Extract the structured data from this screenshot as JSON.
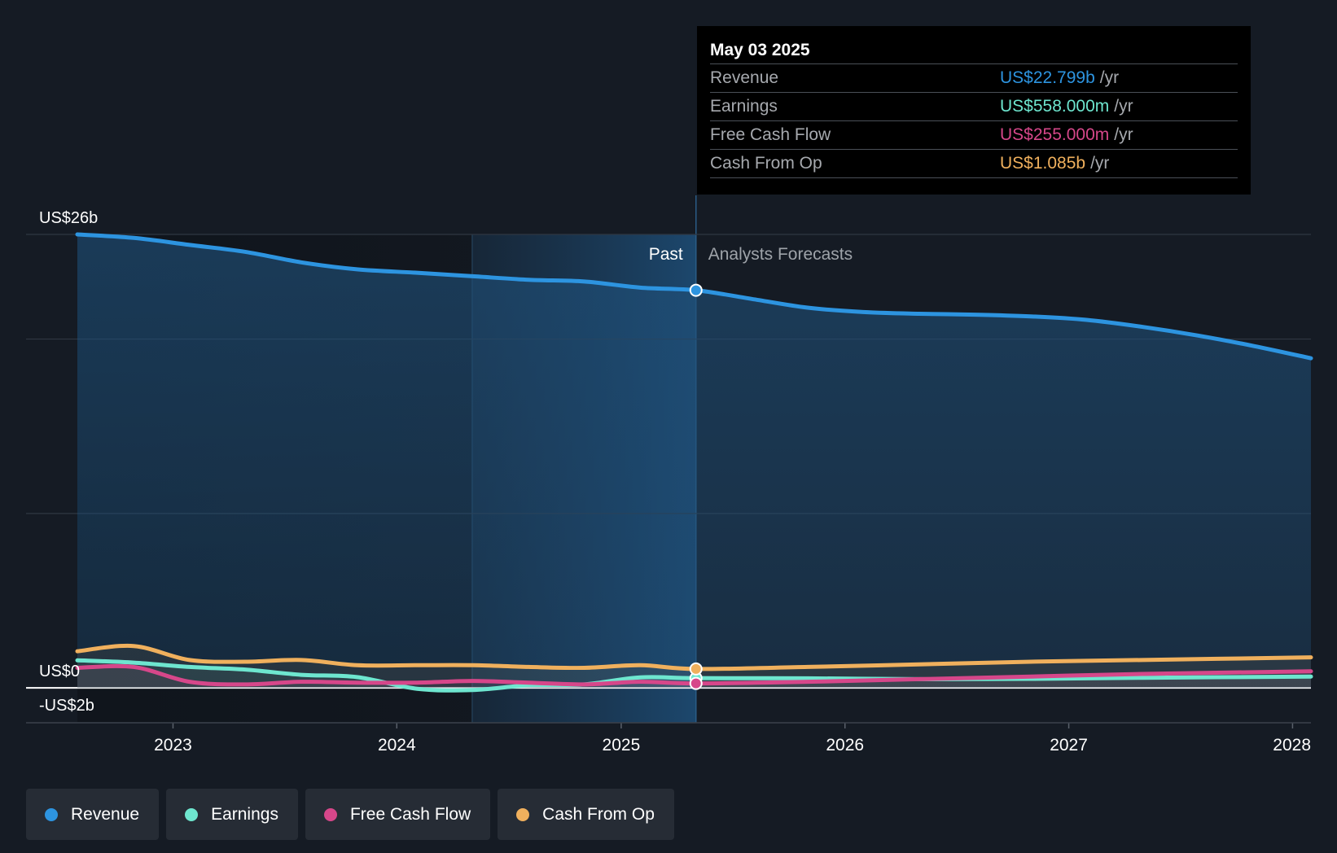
{
  "chart_data": {
    "type": "line",
    "x_axis": {
      "ticks": [
        "2023",
        "2024",
        "2025",
        "2026",
        "2027",
        "2028"
      ],
      "range": [
        "2022-07-29",
        "2028-01-31"
      ]
    },
    "y_axis": {
      "range_billions": [
        -2,
        26
      ],
      "labels": [
        {
          "value": 26,
          "text": "US$26b"
        },
        {
          "value": 0,
          "text": "US$0"
        },
        {
          "value": -2,
          "text": "-US$2b"
        }
      ],
      "gridlines_billions": [
        26,
        20,
        10,
        -2
      ]
    },
    "grid": true,
    "past_label": "Past",
    "forecast_label": "Analysts Forecasts",
    "divider_date": "2025-05-03",
    "highlight_band_start": "2024-05-03",
    "series": [
      {
        "name": "Revenue",
        "color": "#2d94e0",
        "fill": true,
        "points": [
          [
            "2022-07-29",
            26.0
          ],
          [
            "2022-10-29",
            25.8
          ],
          [
            "2023-01-28",
            25.4
          ],
          [
            "2023-04-29",
            25.0
          ],
          [
            "2023-07-29",
            24.4
          ],
          [
            "2023-10-28",
            24.0
          ],
          [
            "2024-02-03",
            23.8
          ],
          [
            "2024-05-04",
            23.6
          ],
          [
            "2024-08-03",
            23.4
          ],
          [
            "2024-11-02",
            23.3
          ],
          [
            "2025-02-01",
            22.95
          ],
          [
            "2025-05-03",
            22.799
          ],
          [
            "2025-08-02",
            22.3
          ],
          [
            "2025-11-01",
            21.8
          ],
          [
            "2026-01-31",
            21.55
          ],
          [
            "2026-05-02",
            21.45
          ],
          [
            "2026-08-01",
            21.4
          ],
          [
            "2026-10-31",
            21.3
          ],
          [
            "2027-01-30",
            21.1
          ],
          [
            "2027-05-01",
            20.7
          ],
          [
            "2027-07-31",
            20.2
          ],
          [
            "2027-10-30",
            19.6
          ],
          [
            "2028-01-31",
            18.9
          ]
        ]
      },
      {
        "name": "Earnings",
        "color": "#6ee6cf",
        "fill": false,
        "points": [
          [
            "2022-07-29",
            1.58
          ],
          [
            "2022-10-29",
            1.45
          ],
          [
            "2023-01-28",
            1.2
          ],
          [
            "2023-04-29",
            1.05
          ],
          [
            "2023-07-29",
            0.75
          ],
          [
            "2023-10-28",
            0.62
          ],
          [
            "2024-02-03",
            -0.05
          ],
          [
            "2024-05-04",
            -0.12
          ],
          [
            "2024-08-03",
            0.15
          ],
          [
            "2024-11-02",
            0.2
          ],
          [
            "2025-02-01",
            0.6
          ],
          [
            "2025-05-03",
            0.558
          ],
          [
            "2025-11-01",
            0.55
          ],
          [
            "2026-05-02",
            0.5
          ],
          [
            "2026-10-31",
            0.52
          ],
          [
            "2027-05-01",
            0.58
          ],
          [
            "2028-01-31",
            0.65
          ]
        ]
      },
      {
        "name": "Free Cash Flow",
        "color": "#d6478a",
        "fill": false,
        "points": [
          [
            "2022-07-29",
            1.15
          ],
          [
            "2022-10-29",
            1.2
          ],
          [
            "2023-01-28",
            0.35
          ],
          [
            "2023-04-29",
            0.2
          ],
          [
            "2023-07-29",
            0.35
          ],
          [
            "2023-10-28",
            0.3
          ],
          [
            "2024-02-03",
            0.3
          ],
          [
            "2024-05-04",
            0.4
          ],
          [
            "2024-08-03",
            0.3
          ],
          [
            "2024-11-02",
            0.2
          ],
          [
            "2025-02-01",
            0.35
          ],
          [
            "2025-05-03",
            0.255
          ],
          [
            "2025-11-01",
            0.35
          ],
          [
            "2026-05-02",
            0.5
          ],
          [
            "2026-10-31",
            0.65
          ],
          [
            "2027-05-01",
            0.8
          ],
          [
            "2028-01-31",
            0.95
          ]
        ]
      },
      {
        "name": "Cash From Op",
        "color": "#f0b05d",
        "fill": false,
        "points": [
          [
            "2022-07-29",
            2.1
          ],
          [
            "2022-10-29",
            2.4
          ],
          [
            "2023-01-28",
            1.6
          ],
          [
            "2023-04-29",
            1.5
          ],
          [
            "2023-07-29",
            1.6
          ],
          [
            "2023-10-28",
            1.3
          ],
          [
            "2024-02-03",
            1.3
          ],
          [
            "2024-05-04",
            1.3
          ],
          [
            "2024-08-03",
            1.2
          ],
          [
            "2024-11-02",
            1.15
          ],
          [
            "2025-02-01",
            1.3
          ],
          [
            "2025-05-03",
            1.085
          ],
          [
            "2025-11-01",
            1.2
          ],
          [
            "2026-05-02",
            1.35
          ],
          [
            "2026-10-31",
            1.5
          ],
          [
            "2027-05-01",
            1.6
          ],
          [
            "2028-01-31",
            1.75
          ]
        ]
      }
    ]
  },
  "tooltip": {
    "date": "May 03 2025",
    "rows": [
      {
        "label": "Revenue",
        "value": "US$22.799b",
        "unit": "/yr",
        "color": "#2d94e0"
      },
      {
        "label": "Earnings",
        "value": "US$558.000m",
        "unit": "/yr",
        "color": "#6ee6cf"
      },
      {
        "label": "Free Cash Flow",
        "value": "US$255.000m",
        "unit": "/yr",
        "color": "#d6478a"
      },
      {
        "label": "Cash From Op",
        "value": "US$1.085b",
        "unit": "/yr",
        "color": "#f0b05d"
      }
    ]
  },
  "legend": [
    {
      "label": "Revenue",
      "color": "#2d94e0"
    },
    {
      "label": "Earnings",
      "color": "#6ee6cf"
    },
    {
      "label": "Free Cash Flow",
      "color": "#d6478a"
    },
    {
      "label": "Cash From Op",
      "color": "#f0b05d"
    }
  ]
}
